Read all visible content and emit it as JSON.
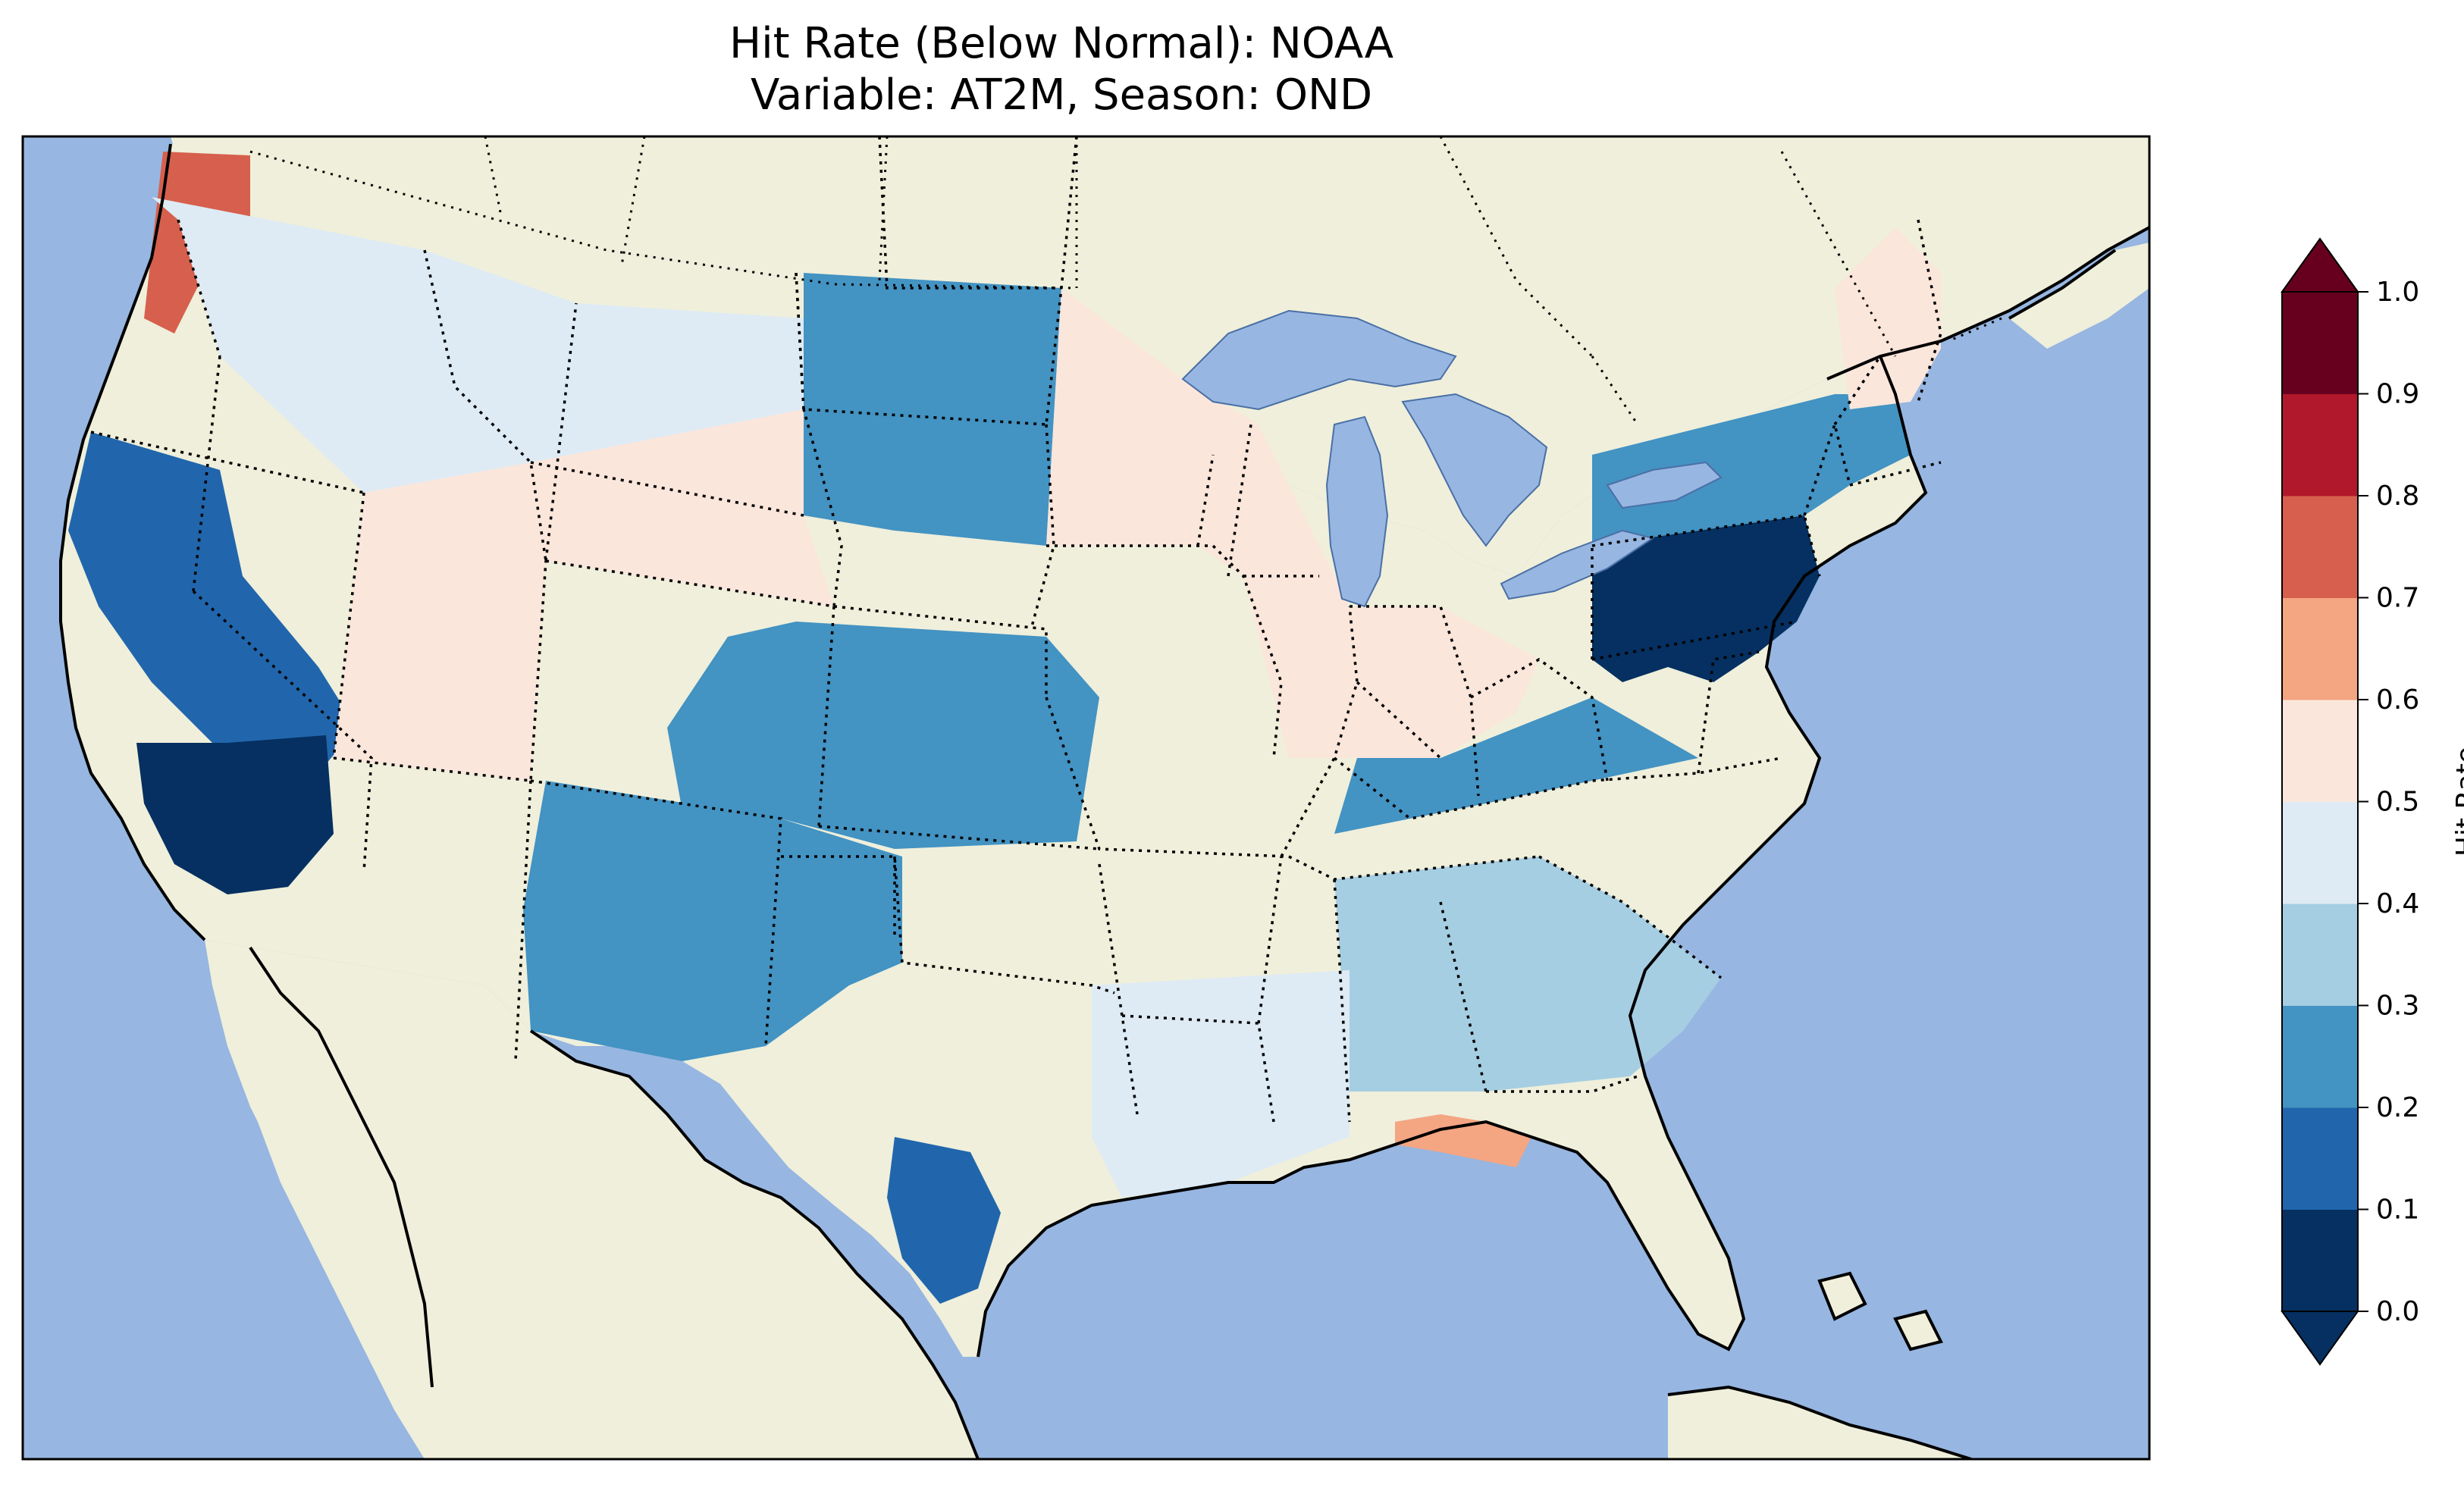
{
  "title": {
    "line1": "Hit Rate (Below Normal): NOAA",
    "line2": "Variable: AT2M, Season: OND"
  },
  "colors": {
    "ocean": "#97b6e1",
    "land": "#efefdb",
    "border": "#000000"
  },
  "legend": {
    "label": "Hit Rate",
    "ticks": [
      "0.0",
      "0.1",
      "0.2",
      "0.3",
      "0.4",
      "0.5",
      "0.6",
      "0.7",
      "0.8",
      "0.9",
      "1.0"
    ],
    "bins": [
      {
        "range": "0.0-0.1",
        "color": "#053061"
      },
      {
        "range": "0.1-0.2",
        "color": "#2166ac"
      },
      {
        "range": "0.2-0.3",
        "color": "#4393c3"
      },
      {
        "range": "0.3-0.4",
        "color": "#a6cee3"
      },
      {
        "range": "0.4-0.5",
        "color": "#deebf5"
      },
      {
        "range": "0.5-0.6",
        "color": "#fbe6dc"
      },
      {
        "range": "0.6-0.7",
        "color": "#f4a582"
      },
      {
        "range": "0.7-0.8",
        "color": "#d6604d"
      },
      {
        "range": "0.8-0.9",
        "color": "#b2182b"
      },
      {
        "range": "0.9-1.0",
        "color": "#67001f"
      }
    ],
    "under_color": "#053061",
    "over_color": "#67001f"
  },
  "regions": [
    {
      "name": "Pacific Northwest coast",
      "value": 0.75
    },
    {
      "name": "Interior Northwest",
      "value": 0.45
    },
    {
      "name": "California coast",
      "value": 0.15
    },
    {
      "name": "Southern California",
      "value": 0.05
    },
    {
      "name": "Great Basin",
      "value": 0.55
    },
    {
      "name": "Northern Rockies",
      "value": 0.55
    },
    {
      "name": "Colorado / Kansas",
      "value": 0.25
    },
    {
      "name": "Southwest / New Mexico",
      "value": 0.25
    },
    {
      "name": "Dakotas",
      "value": 0.25
    },
    {
      "name": "Upper Midwest",
      "value": 0.55
    },
    {
      "name": "Ohio Valley",
      "value": 0.55
    },
    {
      "name": "Tennessee Valley",
      "value": 0.25
    },
    {
      "name": "Mid-Atlantic",
      "value": 0.05
    },
    {
      "name": "Northeast",
      "value": 0.25
    },
    {
      "name": "Northern New England",
      "value": 0.55
    },
    {
      "name": "Southeast",
      "value": 0.35
    },
    {
      "name": "Gulf Coast",
      "value": 0.45
    },
    {
      "name": "Florida Panhandle",
      "value": 0.65
    },
    {
      "name": "South Texas",
      "value": 0.15
    }
  ]
}
